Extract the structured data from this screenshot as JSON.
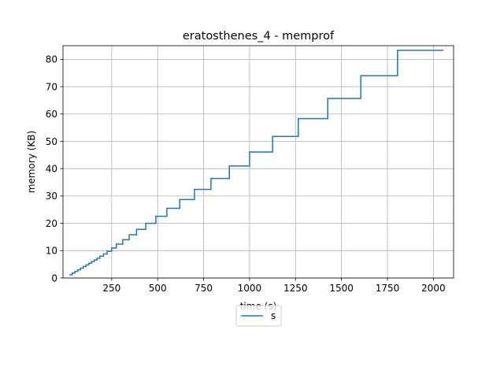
{
  "chart_data": {
    "type": "line",
    "title": "eratosthenes_4 - memprof",
    "xlabel": "time (s)",
    "ylabel": "memory (KB)",
    "xlim": [
      -15,
      2110
    ],
    "ylim": [
      0,
      85
    ],
    "xticks": [
      250,
      500,
      750,
      1000,
      1250,
      1500,
      1750,
      2000
    ],
    "yticks": [
      0,
      10,
      20,
      30,
      40,
      50,
      60,
      70,
      80
    ],
    "grid": true,
    "legend_position": "below",
    "series": [
      {
        "name": "s",
        "color": "#1f77b4",
        "step": "post",
        "x": [
          20,
          35,
          50,
          65,
          80,
          95,
          110,
          125,
          140,
          155,
          170,
          185,
          205,
          225,
          250,
          275,
          310,
          345,
          385,
          435,
          490,
          550,
          620,
          700,
          790,
          890,
          1000,
          1125,
          1265,
          1425,
          1605,
          1805,
          2030,
          2055
        ],
        "y": [
          1.2,
          1.8,
          2.4,
          3.0,
          3.6,
          4.2,
          4.8,
          5.4,
          6.0,
          6.6,
          7.2,
          8.0,
          8.8,
          9.8,
          11.0,
          12.4,
          14.0,
          15.8,
          17.8,
          20.0,
          22.6,
          25.5,
          28.7,
          32.4,
          36.4,
          41.0,
          46.1,
          51.8,
          58.3,
          65.7,
          74.0,
          83.3,
          83.3,
          83.3
        ]
      }
    ],
    "legend": [
      {
        "label": "s",
        "color": "#1f77b4"
      }
    ]
  }
}
